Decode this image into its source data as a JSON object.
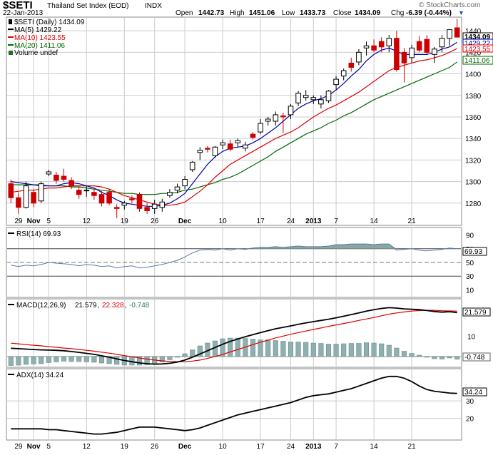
{
  "header": {
    "symbol": "$SETI",
    "name": "Thailand Set Index (EOD)",
    "exchange": "INDX",
    "date": "22-Jan-2013",
    "watermark": "© StockCharts.com",
    "open_label": "Open",
    "open": "1442.73",
    "high_label": "High",
    "high": "1451.06",
    "low_label": "Low",
    "low": "1433.73",
    "close_label": "Close",
    "close": "1434.09",
    "chg_label": "Chg",
    "chg": "-6.39 (-0.44%)"
  },
  "colors": {
    "up": "#000000",
    "down": "#cc0000",
    "ma5": "#0000aa",
    "ma10": "#dd0000",
    "ma20": "#006600",
    "rsi_fill": "#8aa6a0",
    "macd_hist": "#8fb0b0",
    "grid": "#cccccc",
    "panel_border": "#888888"
  },
  "price_legend": {
    "title": "$SETI (Daily) 1434.09",
    "ma5": "MA(5) 1429.22",
    "ma10": "MA(10) 1423.55",
    "ma20": "MA(20) 1411.06",
    "volume": "Volume undef"
  },
  "price_badges": {
    "close": "1434.09",
    "ma5": "1429.22",
    "ma10": "1423.55",
    "ma20": "1411.06"
  },
  "rsi_legend": {
    "title": "RSI(14) 69.93",
    "badge": "69.93"
  },
  "macd_legend": {
    "name": "MACD(12,26,9)",
    "macd": "21.579",
    "signal": "22.328",
    "hist": "-0.748",
    "badge_macd": "21.579",
    "badge_hist": "-0.748"
  },
  "adx_legend": {
    "title": "ADX(14) 34.24",
    "badge": "34.24"
  },
  "x_axis_labels": [
    {
      "label": "29",
      "i": 1,
      "bold": false
    },
    {
      "label": "Nov",
      "i": 3,
      "bold": true
    },
    {
      "label": "5",
      "i": 5,
      "bold": false
    },
    {
      "label": "12",
      "i": 10,
      "bold": false
    },
    {
      "label": "19",
      "i": 15,
      "bold": false
    },
    {
      "label": "26",
      "i": 19,
      "bold": false
    },
    {
      "label": "Dec",
      "i": 23,
      "bold": true
    },
    {
      "label": "10",
      "i": 28,
      "bold": false
    },
    {
      "label": "17",
      "i": 33,
      "bold": false
    },
    {
      "label": "24",
      "i": 37,
      "bold": false
    },
    {
      "label": "2013",
      "i": 40,
      "bold": true
    },
    {
      "label": "7",
      "i": 43,
      "bold": false
    },
    {
      "label": "14",
      "i": 48,
      "bold": false
    },
    {
      "label": "21",
      "i": 53,
      "bold": false
    }
  ],
  "chart_data": [
    {
      "type": "candlestick",
      "title": "$SETI (Daily) 1434.09",
      "ylim": [
        1260,
        1452
      ],
      "yticks": [
        1280,
        1300,
        1320,
        1340,
        1360,
        1380,
        1400,
        1420,
        1440
      ],
      "series_names": [
        "MA(5)",
        "MA(10)",
        "MA(20)"
      ],
      "ohlc": [
        [
          1298,
          1302,
          1280,
          1285
        ],
        [
          1285,
          1290,
          1270,
          1276
        ],
        [
          1276,
          1300,
          1275,
          1296
        ],
        [
          1290,
          1293,
          1276,
          1280
        ],
        [
          1282,
          1300,
          1280,
          1298
        ],
        [
          1307,
          1311,
          1305,
          1309
        ],
        [
          1306,
          1309,
          1298,
          1301
        ],
        [
          1305,
          1312,
          1300,
          1302
        ],
        [
          1301,
          1304,
          1293,
          1296
        ],
        [
          1292,
          1295,
          1284,
          1288
        ],
        [
          1292,
          1296,
          1286,
          1292
        ],
        [
          1290,
          1293,
          1283,
          1287
        ],
        [
          1288,
          1291,
          1277,
          1280
        ],
        [
          1290,
          1293,
          1278,
          1280
        ],
        [
          1276,
          1279,
          1266,
          1275
        ],
        [
          1278,
          1282,
          1274,
          1280
        ],
        [
          1284,
          1287,
          1280,
          1283
        ],
        [
          1288,
          1290,
          1272,
          1275
        ],
        [
          1276,
          1280,
          1270,
          1273
        ],
        [
          1275,
          1283,
          1270,
          1279
        ],
        [
          1276,
          1284,
          1272,
          1281
        ],
        [
          1287,
          1293,
          1285,
          1290
        ],
        [
          1292,
          1298,
          1289,
          1295
        ],
        [
          1296,
          1305,
          1293,
          1302
        ],
        [
          1311,
          1319,
          1309,
          1318
        ],
        [
          1327,
          1332,
          1320,
          1329
        ],
        [
          1331,
          1333,
          1327,
          1330
        ],
        [
          1324,
          1333,
          1322,
          1332
        ],
        [
          1334,
          1339,
          1330,
          1336
        ],
        [
          1335,
          1339,
          1328,
          1330
        ],
        [
          1336,
          1340,
          1332,
          1338
        ],
        [
          1331,
          1337,
          1328,
          1334
        ],
        [
          1344,
          1346,
          1339,
          1341
        ],
        [
          1346,
          1358,
          1344,
          1354
        ],
        [
          1356,
          1360,
          1352,
          1358
        ],
        [
          1356,
          1365,
          1352,
          1362
        ],
        [
          1361,
          1364,
          1345,
          1360
        ],
        [
          1362,
          1372,
          1358,
          1370
        ],
        [
          1373,
          1384,
          1370,
          1382
        ],
        [
          1378,
          1385,
          1375,
          1380
        ],
        [
          1376,
          1380,
          1372,
          1378
        ],
        [
          1372,
          1380,
          1368,
          1376
        ],
        [
          1375,
          1385,
          1373,
          1384
        ],
        [
          1390,
          1398,
          1385,
          1395
        ],
        [
          1398,
          1405,
          1394,
          1403
        ],
        [
          1410,
          1415,
          1402,
          1406
        ],
        [
          1411,
          1423,
          1408,
          1420
        ],
        [
          1424,
          1430,
          1417,
          1426
        ],
        [
          1426,
          1432,
          1420,
          1422
        ],
        [
          1430,
          1434,
          1420,
          1425
        ],
        [
          1426,
          1436,
          1420,
          1433
        ],
        [
          1433,
          1440,
          1402,
          1404
        ],
        [
          1420,
          1424,
          1392,
          1410
        ],
        [
          1415,
          1427,
          1410,
          1424
        ],
        [
          1430,
          1435,
          1420,
          1422
        ],
        [
          1432,
          1436,
          1418,
          1420
        ],
        [
          1418,
          1425,
          1410,
          1423
        ],
        [
          1425,
          1436,
          1420,
          1433
        ],
        [
          1433,
          1440,
          1426,
          1441
        ],
        [
          1442.73,
          1451.06,
          1433.73,
          1434.09
        ]
      ],
      "ma5": [
        1300,
        1299,
        1298,
        1297,
        1296,
        1296,
        1296,
        1298,
        1299,
        1298,
        1296,
        1294,
        1290,
        1287,
        1283,
        1280,
        1279,
        1278,
        1277,
        1277,
        1278,
        1280,
        1284,
        1289,
        1298,
        1307,
        1316,
        1323,
        1328,
        1331,
        1332,
        1333,
        1336,
        1340,
        1345,
        1350,
        1356,
        1362,
        1368,
        1372,
        1375,
        1377,
        1380,
        1385,
        1391,
        1398,
        1404,
        1412,
        1418,
        1422,
        1424,
        1421,
        1418,
        1418,
        1418,
        1418,
        1420,
        1423,
        1425,
        1429.22
      ],
      "ma10": [
        1290,
        1291,
        1292,
        1292,
        1293,
        1294,
        1294,
        1295,
        1296,
        1296,
        1296,
        1296,
        1295,
        1293,
        1290,
        1287,
        1285,
        1283,
        1281,
        1279,
        1278,
        1278,
        1279,
        1281,
        1286,
        1291,
        1297,
        1304,
        1310,
        1316,
        1320,
        1324,
        1328,
        1332,
        1336,
        1340,
        1343,
        1346,
        1350,
        1355,
        1360,
        1364,
        1368,
        1371,
        1375,
        1379,
        1383,
        1388,
        1393,
        1398,
        1403,
        1406,
        1408,
        1410,
        1412,
        1413,
        1415,
        1417,
        1420,
        1423.55
      ],
      "ma20": [
        1297,
        1297,
        1297,
        1297,
        1297,
        1296,
        1296,
        1296,
        1295,
        1295,
        1294,
        1293,
        1292,
        1291,
        1290,
        1289,
        1289,
        1288,
        1288,
        1288,
        1289,
        1289,
        1290,
        1292,
        1293,
        1295,
        1297,
        1299,
        1302,
        1304,
        1307,
        1311,
        1315,
        1319,
        1323,
        1328,
        1332,
        1336,
        1340,
        1344,
        1347,
        1350,
        1354,
        1357,
        1361,
        1364,
        1368,
        1372,
        1376,
        1379,
        1382,
        1385,
        1388,
        1391,
        1394,
        1397,
        1400,
        1403,
        1406,
        1411.06
      ]
    },
    {
      "type": "area",
      "title": "RSI(14) 69.93",
      "ylim": [
        0,
        100
      ],
      "yticks": [
        10,
        30,
        50,
        70,
        90
      ],
      "reference_lines": [
        70,
        50,
        30
      ],
      "values": [
        46,
        44,
        46,
        45,
        47,
        50,
        49,
        48,
        47,
        45,
        47,
        46,
        44,
        45,
        42,
        44,
        45,
        42,
        43,
        45,
        47,
        50,
        53,
        58,
        64,
        68,
        69,
        68,
        70,
        68,
        70,
        69,
        71,
        72,
        72,
        73,
        72,
        73,
        74,
        73,
        73,
        73,
        74,
        76,
        76,
        77,
        77,
        77,
        76,
        77,
        77,
        68,
        69,
        70,
        68,
        67,
        68,
        69,
        71,
        69.93
      ]
    },
    {
      "type": "line",
      "title": "MACD(12,26,9) 21.579, 22.328, -0.748",
      "ylim": [
        -5,
        28
      ],
      "yticks": [
        10
      ],
      "series_names": [
        "MACD",
        "Signal",
        "Histogram"
      ],
      "macd": [
        4.0,
        3.8,
        3.6,
        3.4,
        3.2,
        3.1,
        3.0,
        2.8,
        2.4,
        2.0,
        1.5,
        1.0,
        0.3,
        -0.4,
        -1.2,
        -2.0,
        -2.6,
        -3.2,
        -3.6,
        -3.8,
        -3.7,
        -3.4,
        -2.8,
        -1.8,
        -0.4,
        1.2,
        2.8,
        4.4,
        6.0,
        7.4,
        8.6,
        9.7,
        10.7,
        11.7,
        12.7,
        13.6,
        14.3,
        15.0,
        15.8,
        16.5,
        17.1,
        17.7,
        18.3,
        19.0,
        19.8,
        20.6,
        21.4,
        22.3,
        23.0,
        23.6,
        24.0,
        23.8,
        23.4,
        23.2,
        23.0,
        22.6,
        22.1,
        21.8,
        22.0,
        21.579
      ],
      "signal": [
        6.5,
        6.2,
        5.8,
        5.5,
        5.2,
        4.8,
        4.5,
        4.1,
        3.8,
        3.4,
        3.0,
        2.6,
        2.1,
        1.6,
        1.0,
        0.4,
        -0.2,
        -0.8,
        -1.3,
        -1.8,
        -2.2,
        -2.5,
        -2.6,
        -2.6,
        -2.3,
        -1.8,
        -1.0,
        0.0,
        1.0,
        2.2,
        3.4,
        4.6,
        5.8,
        7.0,
        8.0,
        9.1,
        10.0,
        10.9,
        11.7,
        12.5,
        13.3,
        14.0,
        14.8,
        15.5,
        16.2,
        16.9,
        17.7,
        18.4,
        19.2,
        20.0,
        20.8,
        21.4,
        21.9,
        22.3,
        22.6,
        22.7,
        22.7,
        22.5,
        22.4,
        22.328
      ],
      "histogram": [
        -2.5,
        -2.4,
        -2.2,
        -2.1,
        -2.0,
        -1.7,
        -1.5,
        -1.3,
        -1.4,
        -1.4,
        -1.5,
        -1.6,
        -1.8,
        -2.0,
        -2.2,
        -2.4,
        -2.4,
        -2.4,
        -2.3,
        -2.0,
        -1.5,
        -0.9,
        -0.2,
        0.8,
        1.9,
        3.0,
        3.8,
        4.4,
        5.0,
        5.2,
        5.2,
        5.1,
        4.9,
        4.7,
        4.7,
        4.5,
        4.3,
        4.1,
        4.1,
        4.0,
        3.8,
        3.7,
        3.5,
        3.5,
        3.6,
        3.7,
        3.7,
        3.9,
        3.8,
        3.6,
        3.2,
        2.4,
        1.5,
        0.9,
        0.4,
        -0.1,
        -0.6,
        -0.7,
        -0.4,
        -0.748
      ]
    },
    {
      "type": "line",
      "title": "ADX(14) 34.24",
      "ylim": [
        8,
        48
      ],
      "yticks": [
        20,
        30
      ],
      "values": [
        14,
        14,
        14,
        14,
        14,
        13.5,
        13.5,
        13,
        12.5,
        12,
        11.5,
        11,
        11,
        11.5,
        12,
        13,
        14,
        15,
        15,
        15,
        14.5,
        14,
        13.5,
        13,
        13.5,
        14.5,
        16,
        17.5,
        19,
        20.5,
        22,
        23,
        24,
        25,
        26,
        27,
        28,
        29,
        30.5,
        32,
        33,
        33.5,
        34,
        35,
        36,
        37,
        38.5,
        40,
        41.5,
        43,
        44,
        44,
        43,
        41,
        38.5,
        36.5,
        35.5,
        35,
        34.5,
        34.24
      ]
    }
  ]
}
